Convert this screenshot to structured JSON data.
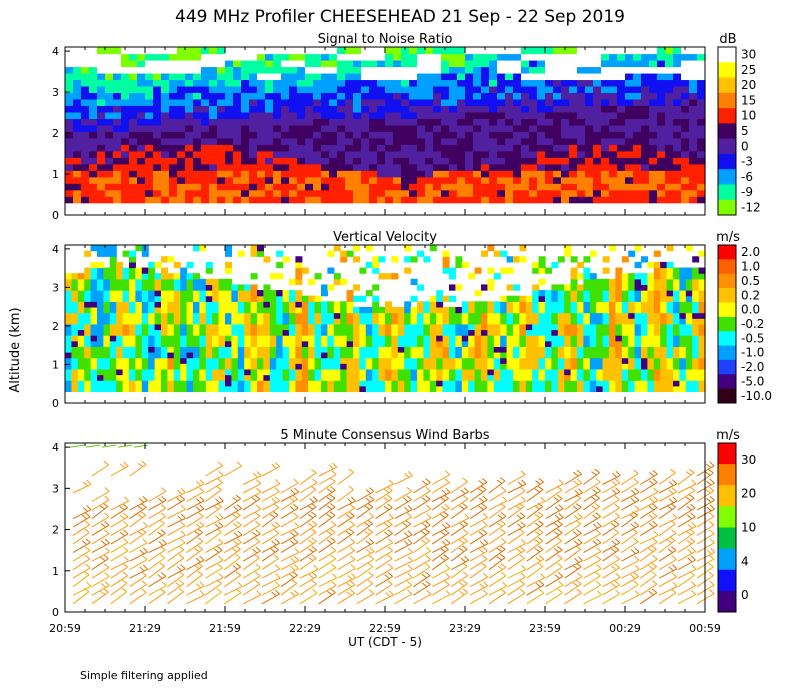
{
  "title": "449 MHz Profiler CHEESEHEAD 21 Sep - 22 Sep 2019",
  "y_axis_label": "Altitude (km)",
  "x_axis_label": "UT  (CDT - 5)",
  "footnote": "Simple filtering applied",
  "chart_data": [
    {
      "type": "heatmap",
      "title": "Signal to Noise Ratio",
      "units": "dB",
      "ylim": [
        0,
        4.1
      ],
      "y_ticks": [
        "0",
        "1",
        "2",
        "3",
        "4"
      ],
      "x_ticks": [
        "20:59",
        "21:29",
        "21:59",
        "22:29",
        "22:59",
        "23:29",
        "23:59",
        "00:29",
        "00:59"
      ],
      "legend_labels": [
        "30",
        "25",
        "20",
        "15",
        "10",
        "5",
        "0",
        "-3",
        "-6",
        "-9",
        "-12"
      ],
      "legend_colors": [
        "#ffffff",
        "#ffff00",
        "#ffc000",
        "#ff8000",
        "#ff2000",
        "#400060",
        "#5020a0",
        "#1010f0",
        "#00a0ff",
        "#00ffa0",
        "#80ff00"
      ]
    },
    {
      "type": "heatmap",
      "title": "Vertical Velocity",
      "units": "m/s",
      "ylim": [
        0,
        4.1
      ],
      "y_ticks": [
        "0",
        "1",
        "2",
        "3",
        "4"
      ],
      "legend_labels": [
        "2.0",
        "1.0",
        "0.5",
        "0.2",
        "0.0",
        "-0.2",
        "-0.5",
        "-1.0",
        "-2.0",
        "-5.0",
        "-10.0"
      ],
      "legend_colors": [
        "#ff0000",
        "#ff6000",
        "#ff9000",
        "#ffc000",
        "#ffff00",
        "#40e000",
        "#00ffff",
        "#00a0ff",
        "#2040ff",
        "#400080",
        "#300018"
      ]
    },
    {
      "type": "scatter",
      "title": "5 Minute Consensus Wind Barbs",
      "units": "m/s",
      "ylim": [
        0,
        4.1
      ],
      "y_ticks": [
        "0",
        "1",
        "2",
        "3",
        "4"
      ],
      "legend_labels": [
        "30",
        "20",
        "10",
        "4",
        "0"
      ],
      "legend_colors": [
        "#ff0000",
        "#ff8000",
        "#ffc000",
        "#80ff00",
        "#00c040",
        "#00a0ff",
        "#1010ff",
        "#400080"
      ]
    }
  ]
}
